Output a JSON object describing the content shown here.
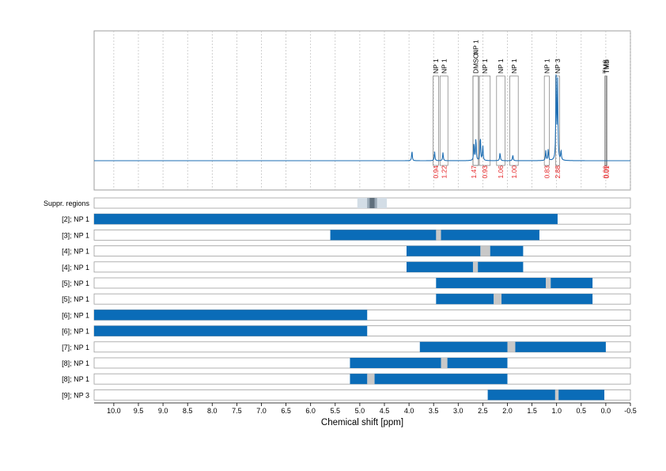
{
  "chart_data": {
    "type": "nmr_spectrum_with_range_bars",
    "xlabel": "Chemical shift [ppm]",
    "xlim": [
      10.4,
      -0.5
    ],
    "x_ticks": [
      "10.0",
      "9.5",
      "9.0",
      "8.5",
      "8.0",
      "7.5",
      "7.0",
      "6.5",
      "6.0",
      "5.5",
      "5.0",
      "4.5",
      "4.0",
      "3.5",
      "3.0",
      "2.5",
      "2.0",
      "1.5",
      "1.0",
      "0.5",
      "0.0",
      "-0.5"
    ],
    "x_tick_values": [
      10.0,
      9.5,
      9.0,
      8.5,
      8.0,
      7.5,
      7.0,
      6.5,
      6.0,
      5.5,
      5.0,
      4.5,
      4.0,
      3.5,
      3.0,
      2.5,
      2.0,
      1.5,
      1.0,
      0.5,
      0.0,
      -0.5
    ],
    "colors": {
      "spectrum": "#1f6fb4",
      "bar": "#0a6cb8",
      "gap": "#c8c8c8",
      "integral": "#e41a1c",
      "grid": "#bdbdbd",
      "suppression_light": "#d3dde6",
      "suppression_dark": "#5f6f7c"
    },
    "peak_annotations": [
      {
        "label": "NP 1",
        "ppm_start": 3.51,
        "ppm_end": 3.4,
        "integral": "0.94"
      },
      {
        "label": "NP 1",
        "ppm_start": 3.37,
        "ppm_end": 3.21,
        "integral": "1.22"
      },
      {
        "label": "DMSO",
        "ppm_start": 2.7,
        "ppm_end": 2.59,
        "integral": "1.47"
      },
      {
        "label": "NP 1",
        "ppm_start": 2.7,
        "ppm_end": 2.59,
        "integral": ""
      },
      {
        "label": "NP 1",
        "ppm_start": 2.57,
        "ppm_end": 2.35,
        "integral": "0.93"
      },
      {
        "label": "NP 1",
        "ppm_start": 2.22,
        "ppm_end": 2.05,
        "integral": "1.06"
      },
      {
        "label": "NP 1",
        "ppm_start": 1.95,
        "ppm_end": 1.78,
        "integral": "1.00"
      },
      {
        "label": "NP 1",
        "ppm_start": 1.25,
        "ppm_end": 1.15,
        "integral": "0.83"
      },
      {
        "label": "NP 3",
        "ppm_start": 1.02,
        "ppm_end": 0.94,
        "integral": "2.88"
      },
      {
        "label": "TMS",
        "ppm_start": 0.02,
        "ppm_end": 0.0,
        "integral": "0.00"
      },
      {
        "label": "TMS",
        "ppm_start": -0.01,
        "ppm_end": -0.02,
        "integral": "0.01"
      }
    ],
    "spectrum_peaks": [
      {
        "ppm": 3.94,
        "height": 0.12
      },
      {
        "ppm": 3.48,
        "height": 0.11
      },
      {
        "ppm": 3.31,
        "height": 0.1
      },
      {
        "ppm": 2.68,
        "height": 0.22
      },
      {
        "ppm": 2.64,
        "height": 0.28
      },
      {
        "ppm": 2.55,
        "height": 0.3
      },
      {
        "ppm": 2.5,
        "height": 0.18
      },
      {
        "ppm": 2.15,
        "height": 0.1
      },
      {
        "ppm": 1.89,
        "height": 0.07
      },
      {
        "ppm": 1.22,
        "height": 0.12
      },
      {
        "ppm": 1.17,
        "height": 0.14
      },
      {
        "ppm": 1.01,
        "height": 1.0
      },
      {
        "ppm": 0.98,
        "height": 0.95
      },
      {
        "ppm": 0.91,
        "height": 0.12
      }
    ],
    "suppression_regions": {
      "label": "Suppr. regions",
      "outer": [
        5.05,
        4.45
      ],
      "inner": [
        4.85,
        4.65
      ],
      "core": [
        4.8,
        4.7
      ]
    },
    "rows": [
      {
        "label": "[2]; NP 1",
        "segments": [
          [
            10.4,
            0.98
          ]
        ]
      },
      {
        "label": "[3]; NP 1",
        "segments": [
          [
            5.6,
            3.45
          ],
          [
            3.35,
            1.35
          ]
        ],
        "gaps": [
          [
            3.45,
            3.35
          ]
        ]
      },
      {
        "label": "[4]; NP 1",
        "segments": [
          [
            4.05,
            2.55
          ],
          [
            2.35,
            1.68
          ]
        ],
        "gaps": [
          [
            2.55,
            2.35
          ]
        ]
      },
      {
        "label": "[4]; NP 1",
        "segments": [
          [
            4.05,
            2.7
          ],
          [
            2.6,
            1.68
          ]
        ],
        "gaps": [
          [
            2.7,
            2.6
          ]
        ]
      },
      {
        "label": "[5]; NP 1",
        "segments": [
          [
            3.45,
            1.22
          ],
          [
            1.12,
            0.27
          ]
        ],
        "gaps": [
          [
            1.22,
            1.12
          ]
        ]
      },
      {
        "label": "[5]; NP 1",
        "segments": [
          [
            3.45,
            2.28
          ],
          [
            2.12,
            0.27
          ]
        ],
        "gaps": [
          [
            2.28,
            2.12
          ]
        ]
      },
      {
        "label": "[6]; NP 1",
        "segments": [
          [
            10.4,
            4.85
          ]
        ]
      },
      {
        "label": "[6]; NP 1",
        "segments": [
          [
            10.4,
            4.85
          ]
        ]
      },
      {
        "label": "[7]; NP 1",
        "segments": [
          [
            3.78,
            2.0
          ],
          [
            1.84,
            0.0
          ]
        ],
        "gaps": [
          [
            2.0,
            1.84
          ]
        ]
      },
      {
        "label": "[8]; NP 1",
        "segments": [
          [
            5.2,
            3.35
          ],
          [
            3.22,
            2.0
          ]
        ],
        "gaps": [
          [
            3.35,
            3.22
          ]
        ]
      },
      {
        "label": "[8]; NP 1",
        "segments": [
          [
            5.2,
            4.85
          ],
          [
            4.7,
            2.0
          ]
        ],
        "gaps": [
          [
            4.85,
            4.7
          ]
        ]
      },
      {
        "label": "[9]; NP 3",
        "segments": [
          [
            2.4,
            1.03
          ],
          [
            0.96,
            0.03
          ]
        ],
        "gaps": [
          [
            1.03,
            0.96
          ]
        ]
      }
    ]
  }
}
